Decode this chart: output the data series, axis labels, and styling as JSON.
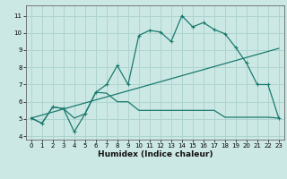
{
  "xlabel": "Humidex (Indice chaleur)",
  "xlim": [
    -0.5,
    23.5
  ],
  "ylim": [
    3.8,
    11.6
  ],
  "yticks": [
    4,
    5,
    6,
    7,
    8,
    9,
    10,
    11
  ],
  "xticks": [
    0,
    1,
    2,
    3,
    4,
    5,
    6,
    7,
    8,
    9,
    10,
    11,
    12,
    13,
    14,
    15,
    16,
    17,
    18,
    19,
    20,
    21,
    22,
    23
  ],
  "background_color": "#cce8e4",
  "grid_color": "#aed4cf",
  "line_color": "#1a7a6e",
  "line1_x": [
    0,
    1,
    2,
    3,
    4,
    5,
    6,
    7,
    8,
    9,
    10,
    11,
    12,
    13,
    14,
    15,
    16,
    17,
    18,
    19,
    20,
    21,
    22,
    23
  ],
  "line1_y": [
    5.05,
    4.75,
    5.7,
    5.6,
    4.25,
    5.3,
    6.55,
    7.0,
    8.1,
    7.0,
    9.85,
    10.15,
    10.05,
    9.5,
    11.0,
    10.35,
    10.6,
    10.2,
    9.95,
    9.15,
    8.25,
    7.0,
    7.0,
    5.05
  ],
  "line2_x": [
    0,
    1,
    2,
    3,
    4,
    5,
    6,
    7,
    8,
    9,
    10,
    11,
    12,
    13,
    14,
    15,
    16,
    17,
    18,
    19,
    20,
    21,
    22,
    23
  ],
  "line2_y": [
    5.05,
    4.75,
    5.7,
    5.6,
    5.05,
    5.3,
    6.55,
    6.5,
    6.0,
    6.0,
    5.5,
    5.5,
    5.5,
    5.5,
    5.5,
    5.5,
    5.5,
    5.5,
    5.1,
    5.1,
    5.1,
    5.1,
    5.1,
    5.05
  ],
  "line3_x": [
    0,
    23
  ],
  "line3_y": [
    5.05,
    9.1
  ]
}
